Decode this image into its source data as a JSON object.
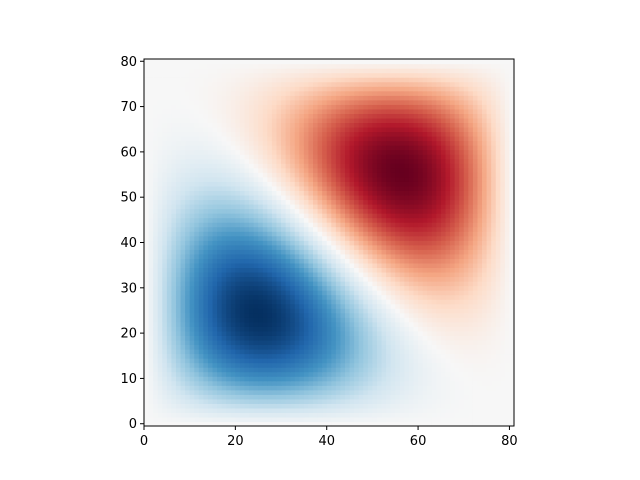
{
  "chart_data": {
    "type": "heatmap",
    "title": "",
    "xlabel": "",
    "ylabel": "",
    "colormap": "RdBu_r",
    "grid": false,
    "xlim": [
      0,
      81
    ],
    "ylim": [
      0,
      81
    ],
    "xticks": [
      0,
      20,
      40,
      60,
      80
    ],
    "yticks": [
      0,
      10,
      20,
      30,
      40,
      50,
      60,
      70,
      80
    ],
    "resolution": [
      81,
      81
    ],
    "features": [
      {
        "name": "negative peak",
        "center": [
          24,
          24
        ],
        "value": -1
      },
      {
        "name": "positive peak",
        "center": [
          56,
          56
        ],
        "value": 1
      }
    ],
    "colors": {
      "negative": "#053061",
      "neutral": "#f7f7f7",
      "positive": "#67001f"
    }
  }
}
